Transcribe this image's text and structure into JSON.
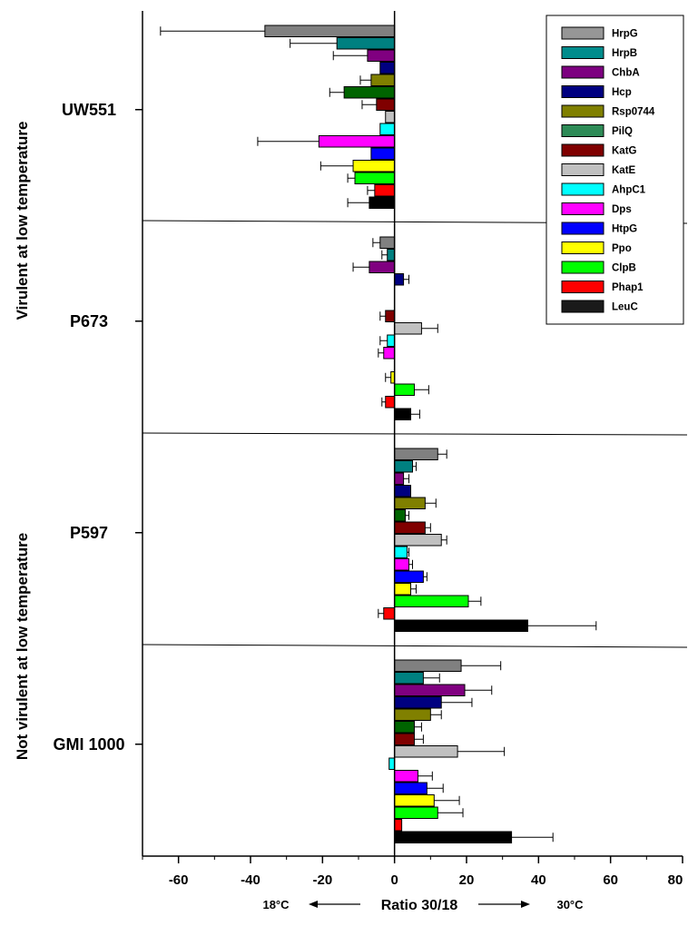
{
  "chart_data": {
    "type": "bar",
    "orientation": "horizontal",
    "title": "",
    "xlabel": "Ratio 30/18",
    "xlabel_left": "18°C",
    "xlabel_right": "30°C",
    "xlim": [
      -70,
      80
    ],
    "xticks": [
      -60,
      -40,
      -20,
      0,
      20,
      40,
      60,
      80
    ],
    "legend_position": "top-right",
    "series": [
      {
        "name": "HrpG",
        "color": "#969696"
      },
      {
        "name": "HrpB",
        "color": "#008c8c"
      },
      {
        "name": "ChbA",
        "color": "#7d0080"
      },
      {
        "name": "Hcp",
        "color": "#000080"
      },
      {
        "name": "Rsp0744",
        "color": "#808000"
      },
      {
        "name": "PilQ",
        "color": "#2e8b57"
      },
      {
        "name": "KatG",
        "color": "#800000"
      },
      {
        "name": "KatE",
        "color": "#c0c0c0"
      },
      {
        "name": "AhpC1",
        "color": "#00ffff"
      },
      {
        "name": "Dps",
        "color": "#ff00ff"
      },
      {
        "name": "HtpG",
        "color": "#0000ff"
      },
      {
        "name": "Ppo",
        "color": "#ffff00"
      },
      {
        "name": "ClpB",
        "color": "#00ff00"
      },
      {
        "name": "Phap1",
        "color": "#ff0000"
      },
      {
        "name": "LeuC",
        "color": "#1a1a1a"
      }
    ],
    "bar_colors": [
      "#808080",
      "#008080",
      "#800080",
      "#000080",
      "#808000",
      "#006400",
      "#800000",
      "#c0c0c0",
      "#00ffff",
      "#ff00ff",
      "#0000ff",
      "#ffff00",
      "#00ff00",
      "#ff0000",
      "#000000"
    ],
    "groups": [
      {
        "name": "UW551",
        "values": [
          -36,
          -16,
          -7.5,
          -4,
          -6.5,
          -14,
          -5,
          -2.5,
          -4,
          -21,
          -6.5,
          -11.5,
          -11,
          -5.5,
          -7
        ],
        "errors": [
          29,
          13,
          9.5,
          null,
          3,
          4,
          4,
          null,
          null,
          17,
          null,
          9,
          2,
          2,
          6
        ]
      },
      {
        "name": "P673",
        "values": [
          -4,
          -2,
          -7,
          2.5,
          0,
          0,
          -2.5,
          7.5,
          -2,
          -3,
          0,
          -1,
          5.5,
          -2.5,
          4.5
        ],
        "errors": [
          2,
          1.5,
          4.5,
          1.5,
          1.5,
          1.5,
          1.5,
          4.5,
          2,
          1.5,
          1.5,
          1.5,
          4,
          1,
          2.5
        ]
      },
      {
        "name": "P597",
        "values": [
          12,
          5,
          2.5,
          4.5,
          8.5,
          3,
          8.5,
          13,
          3.5,
          4,
          8,
          4.5,
          20.5,
          -3,
          37
        ],
        "errors": [
          2.5,
          1,
          1.5,
          null,
          3,
          1,
          1.5,
          1.5,
          0.5,
          1,
          1,
          1.5,
          3.5,
          1.5,
          19
        ]
      },
      {
        "name": "GMI 1000",
        "values": [
          18.5,
          8,
          19.5,
          13,
          10,
          5.5,
          5.5,
          17.5,
          -1.5,
          6.5,
          9,
          11,
          12,
          2,
          32.5
        ],
        "errors": [
          11,
          4.5,
          7.5,
          8.5,
          3,
          2,
          2.5,
          13,
          null,
          4,
          4.5,
          7,
          7,
          null,
          11.5
        ]
      }
    ],
    "group_labels": [
      {
        "text": "Virulent at low  temperature",
        "strains": [
          "UW551",
          "P673"
        ]
      },
      {
        "text": "Not virulent at low  temperature",
        "strains": [
          "P597",
          "GMI 1000"
        ]
      }
    ]
  }
}
